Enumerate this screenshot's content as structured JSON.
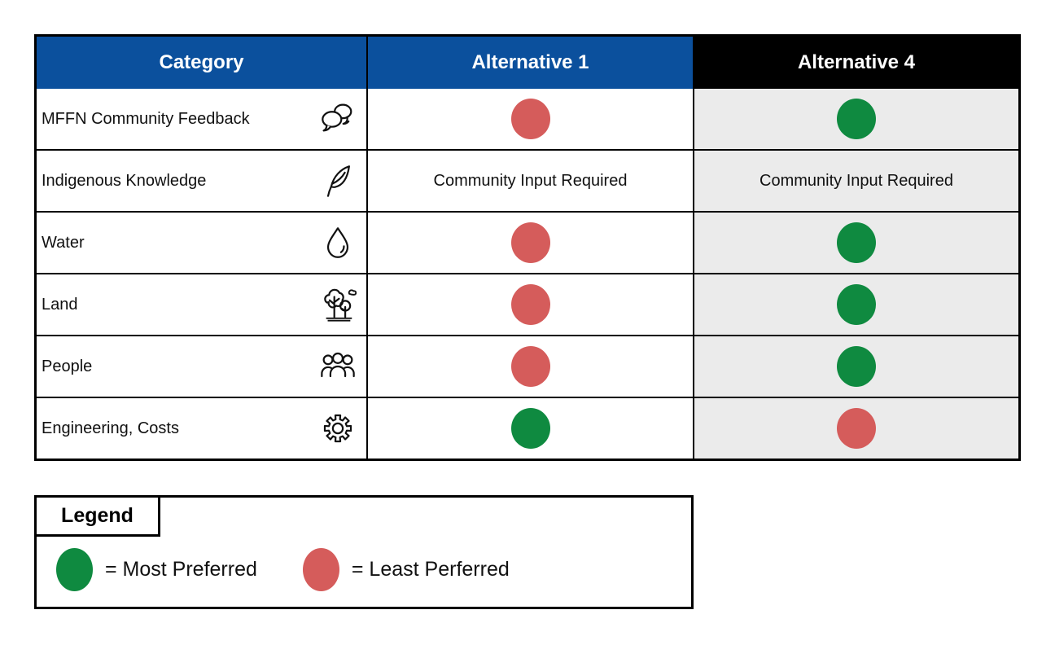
{
  "table": {
    "columns": [
      {
        "label": "Category",
        "header_style": "blue"
      },
      {
        "label": "Alternative 1",
        "header_style": "blue"
      },
      {
        "label": "Alternative 4",
        "header_style": "black"
      }
    ],
    "rows": [
      {
        "category": "MFFN Community Feedback",
        "icon": "speech-bubbles-icon",
        "alt1": {
          "type": "dot",
          "value": "least"
        },
        "alt4": {
          "type": "dot",
          "value": "most"
        }
      },
      {
        "category": "Indigenous Knowledge",
        "icon": "feather-icon",
        "alt1": {
          "type": "text",
          "value": "Community Input Required"
        },
        "alt4": {
          "type": "text",
          "value": "Community Input Required"
        }
      },
      {
        "category": "Water",
        "icon": "water-drop-icon",
        "alt1": {
          "type": "dot",
          "value": "least"
        },
        "alt4": {
          "type": "dot",
          "value": "most"
        }
      },
      {
        "category": "Land",
        "icon": "trees-icon",
        "alt1": {
          "type": "dot",
          "value": "least"
        },
        "alt4": {
          "type": "dot",
          "value": "most"
        }
      },
      {
        "category": "People",
        "icon": "people-icon",
        "alt1": {
          "type": "dot",
          "value": "least"
        },
        "alt4": {
          "type": "dot",
          "value": "most"
        }
      },
      {
        "category": "Engineering, Costs",
        "icon": "gear-icon",
        "alt1": {
          "type": "dot",
          "value": "most"
        },
        "alt4": {
          "type": "dot",
          "value": "least"
        }
      }
    ]
  },
  "legend": {
    "title": "Legend",
    "items": [
      {
        "value": "most",
        "label": "= Most Preferred"
      },
      {
        "value": "least",
        "label": "= Least Perferred"
      }
    ]
  },
  "colors": {
    "header_blue": "#0B509D",
    "header_black": "#000000",
    "alt4_column_gray": "#EBEBEB",
    "most_preferred_green": "#0F8A40",
    "least_preferred_red": "#D55C5B"
  }
}
